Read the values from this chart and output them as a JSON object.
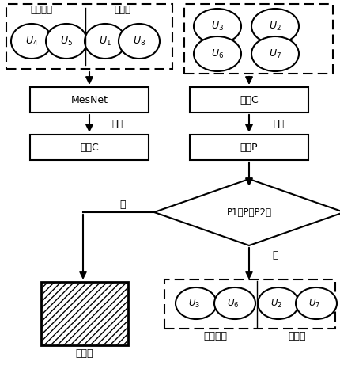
{
  "bg_color": "#ffffff",
  "fig_width": 4.3,
  "fig_height": 4.71,
  "dpi": 100,
  "labels": {
    "micro_frame": "微表情帧",
    "neutral_frame": "中性帧",
    "mesnet": "MesNet",
    "train": "训练",
    "model_c_left": "模型C",
    "model_c_right": "模型C",
    "predict": "预测",
    "prob_p": "概率P",
    "diamond": "P1＜P＜P2？",
    "yes": "是",
    "no": "否",
    "transition": "过渡帧",
    "micro_bottom": "微表情帧",
    "neutral_bottom": "中性帧",
    "u4": "$U_4$",
    "u5": "$U_5$",
    "u1": "$U_1$",
    "u8": "$U_8$",
    "u3_top": "$U_3$",
    "u2_top": "$U_2$",
    "u6_top": "$U_6$",
    "u7_top": "$U_7$",
    "u3_bot": "$U_3$-",
    "u6_bot": "$U_6$-",
    "u2_bot": "$U_2$-",
    "u7_bot": "$U_7$-"
  }
}
